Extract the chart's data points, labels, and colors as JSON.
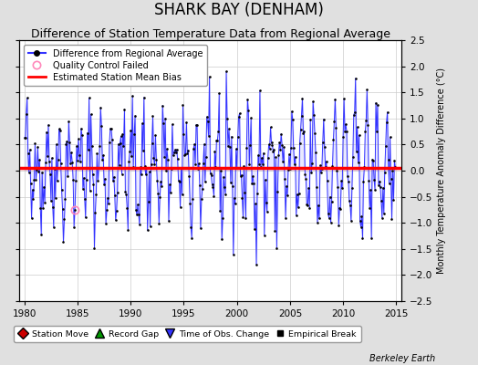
{
  "title": "SHARK BAY (DENHAM)",
  "subtitle": "Difference of Station Temperature Data from Regional Average",
  "ylabel_right": "Monthly Temperature Anomaly Difference (°C)",
  "xlim": [
    1979.5,
    2015.5
  ],
  "ylim": [
    -2.5,
    2.5
  ],
  "xticks": [
    1980,
    1985,
    1990,
    1995,
    2000,
    2005,
    2010,
    2015
  ],
  "yticks": [
    -2.5,
    -2,
    -1.5,
    -1,
    -0.5,
    0,
    0.5,
    1,
    1.5,
    2,
    2.5
  ],
  "mean_bias": 0.05,
  "background_color": "#e0e0e0",
  "plot_bg_color": "#ffffff",
  "line_color": "#3333ff",
  "line_fill_color": "#aaaaff",
  "dot_color": "#000000",
  "bias_color": "#ff0000",
  "title_fontsize": 12,
  "subtitle_fontsize": 9,
  "footer_text": "Berkeley Earth",
  "seed": 42
}
